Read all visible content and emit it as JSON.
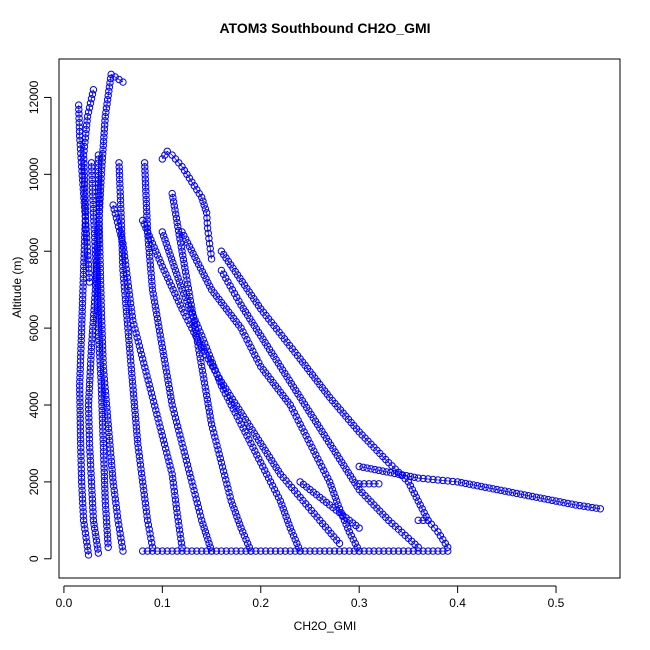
{
  "chart_data": {
    "type": "scatter",
    "title": "ATOM3 Southbound CH2O_GMI",
    "xlabel": "CH2O_GMI",
    "ylabel": "Altitude (m)",
    "xlim": [
      -0.005,
      0.565
    ],
    "ylim": [
      -500,
      13000
    ],
    "x_ticks": [
      0.0,
      0.1,
      0.2,
      0.3,
      0.4,
      0.5
    ],
    "x_tick_labels": [
      "0.0",
      "0.1",
      "0.2",
      "0.3",
      "0.4",
      "0.5"
    ],
    "y_ticks": [
      0,
      2000,
      4000,
      6000,
      8000,
      10000,
      12000
    ],
    "y_tick_labels": [
      "0",
      "2000",
      "4000",
      "6000",
      "8000",
      "10000",
      "12000"
    ],
    "grid": false,
    "legend": "none",
    "marker": "open-circle",
    "color": "#0000ff",
    "series": [
      {
        "x": [
          0.025,
          0.02,
          0.018,
          0.017,
          0.016,
          0.018,
          0.02,
          0.022,
          0.02,
          0.024,
          0.03
        ],
        "y": [
          100,
          1000,
          2000,
          3000,
          4500,
          6000,
          7500,
          9000,
          10500,
          11500,
          12200
        ]
      },
      {
        "x": [
          0.035,
          0.03,
          0.028,
          0.026,
          0.025,
          0.028,
          0.032,
          0.035,
          0.038,
          0.042,
          0.048,
          0.06
        ],
        "y": [
          150,
          1000,
          2000,
          3000,
          4000,
          5500,
          7000,
          8500,
          10000,
          11500,
          12600,
          12400
        ]
      },
      {
        "x": [
          0.06,
          0.055,
          0.05,
          0.045,
          0.04,
          0.038,
          0.036,
          0.035
        ],
        "y": [
          200,
          1000,
          2000,
          3500,
          5000,
          6500,
          8500,
          10500
        ]
      },
      {
        "x": [
          0.09,
          0.085,
          0.08,
          0.075,
          0.07,
          0.065,
          0.06,
          0.058,
          0.056
        ],
        "y": [
          300,
          1000,
          2000,
          3000,
          4500,
          6000,
          7500,
          9000,
          10300
        ]
      },
      {
        "x": [
          0.15,
          0.14,
          0.13,
          0.12,
          0.11,
          0.1,
          0.09,
          0.085,
          0.082
        ],
        "y": [
          200,
          1000,
          2000,
          3000,
          4000,
          5500,
          7000,
          8500,
          10300
        ]
      },
      {
        "x": [
          0.19,
          0.18,
          0.17,
          0.16,
          0.15,
          0.14,
          0.13,
          0.12,
          0.11
        ],
        "y": [
          200,
          800,
          1500,
          2500,
          3500,
          5000,
          6500,
          8000,
          9500
        ]
      },
      {
        "x": [
          0.24,
          0.23,
          0.22,
          0.2,
          0.18,
          0.16,
          0.14,
          0.12,
          0.1
        ],
        "y": [
          200,
          800,
          1500,
          2500,
          3500,
          4500,
          5800,
          7000,
          8500
        ]
      },
      {
        "x": [
          0.3,
          0.29,
          0.28,
          0.27,
          0.25,
          0.23,
          0.2,
          0.18,
          0.15,
          0.12
        ],
        "y": [
          200,
          700,
          1300,
          2000,
          3000,
          4000,
          5000,
          6000,
          7000,
          8500
        ]
      },
      {
        "x": [
          0.39,
          0.38,
          0.37,
          0.36,
          0.35,
          0.33,
          0.3,
          0.27,
          0.24,
          0.2,
          0.16
        ],
        "y": [
          300,
          700,
          1000,
          1500,
          2000,
          2500,
          3300,
          4200,
          5200,
          6500,
          8000
        ]
      },
      {
        "x": [
          0.545,
          0.52,
          0.5,
          0.48,
          0.46,
          0.44,
          0.42,
          0.4,
          0.38,
          0.36,
          0.34,
          0.32,
          0.3
        ],
        "y": [
          1300,
          1400,
          1500,
          1600,
          1700,
          1800,
          1900,
          2000,
          2050,
          2100,
          2200,
          2300,
          2400
        ]
      },
      {
        "x": [
          0.15,
          0.148,
          0.146,
          0.145,
          0.14,
          0.13,
          0.12,
          0.11,
          0.105,
          0.1
        ],
        "y": [
          7800,
          8200,
          8600,
          9000,
          9400,
          9800,
          10200,
          10500,
          10600,
          10400
        ]
      },
      {
        "x": [
          0.36,
          0.33,
          0.3,
          0.28,
          0.26,
          0.24,
          0.22,
          0.2,
          0.18,
          0.16
        ],
        "y": [
          300,
          1000,
          1800,
          2600,
          3400,
          4200,
          5000,
          5800,
          6600,
          7500
        ]
      },
      {
        "x": [
          0.28,
          0.26,
          0.24,
          0.22,
          0.2,
          0.18,
          0.16,
          0.14,
          0.12,
          0.1,
          0.08
        ],
        "y": [
          400,
          1000,
          1600,
          2200,
          3000,
          3800,
          4600,
          5500,
          6500,
          7600,
          8800
        ]
      },
      {
        "x": [
          0.12,
          0.115,
          0.11,
          0.1,
          0.09,
          0.08,
          0.07,
          0.065,
          0.06,
          0.05
        ],
        "y": [
          300,
          1200,
          2200,
          3200,
          4200,
          5200,
          6200,
          7200,
          8200,
          9200
        ]
      },
      {
        "x": [
          0.045,
          0.042,
          0.04,
          0.038,
          0.035,
          0.033,
          0.03,
          0.028
        ],
        "y": [
          300,
          1500,
          3000,
          4500,
          6000,
          7500,
          9000,
          10300
        ]
      },
      {
        "x": [
          0.015,
          0.016,
          0.018,
          0.02,
          0.022,
          0.024,
          0.026
        ],
        "y": [
          11800,
          11000,
          10200,
          9500,
          8800,
          8000,
          7200
        ]
      },
      {
        "x": [
          0.08,
          0.09,
          0.1,
          0.11,
          0.12,
          0.13,
          0.14,
          0.15,
          0.16,
          0.17,
          0.18,
          0.19,
          0.2,
          0.21,
          0.22,
          0.23,
          0.24,
          0.25,
          0.26,
          0.27,
          0.28,
          0.29,
          0.3,
          0.31,
          0.32,
          0.33,
          0.34,
          0.35,
          0.36,
          0.37,
          0.38,
          0.39
        ],
        "y": [
          200,
          200,
          200,
          200,
          200,
          200,
          200,
          200,
          200,
          200,
          200,
          200,
          200,
          200,
          200,
          200,
          200,
          200,
          200,
          200,
          200,
          200,
          200,
          200,
          200,
          200,
          200,
          200,
          200,
          200,
          200,
          200
        ]
      },
      {
        "x": [
          0.3,
          0.31,
          0.32
        ],
        "y": [
          1950,
          1950,
          1950
        ]
      },
      {
        "x": [
          0.36,
          0.37
        ],
        "y": [
          1000,
          1000
        ]
      },
      {
        "x": [
          0.24,
          0.26,
          0.28,
          0.3
        ],
        "y": [
          2000,
          1600,
          1200,
          800
        ]
      }
    ]
  }
}
